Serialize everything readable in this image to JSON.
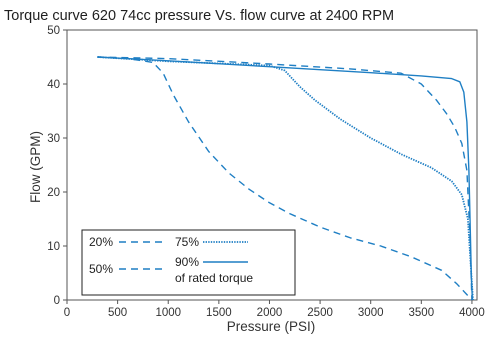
{
  "colors": {
    "series": "#1f7fc4",
    "axis": "#555555",
    "text": "#1f1f1f",
    "legend_border": "#222222"
  },
  "chart_data": {
    "type": "line",
    "title": "Torque curve 620 74cc pressure Vs. flow curve at 2400 RPM",
    "xlabel": "Pressure (PSI)",
    "ylabel": "Flow (GPM)",
    "xlim": [
      0,
      4050
    ],
    "ylim": [
      0,
      50
    ],
    "xticks": [
      0,
      500,
      1000,
      1500,
      2000,
      2500,
      3000,
      3500,
      4000
    ],
    "yticks": [
      0,
      10,
      20,
      30,
      40,
      50
    ],
    "grid": false,
    "legend_position": "bottom-left",
    "legend_note": "of rated torque",
    "series": [
      {
        "name": "20%",
        "style": "dashed",
        "x": [
          300,
          600,
          850,
          950,
          1050,
          1200,
          1400,
          1600,
          1800,
          2000,
          2200,
          2500,
          2800,
          3100,
          3400,
          3700,
          3850,
          3950,
          4000
        ],
        "y": [
          45,
          44.7,
          44,
          42,
          38,
          33,
          27.5,
          23.5,
          20.5,
          18,
          16,
          13.5,
          11.5,
          10,
          8,
          5.5,
          3,
          1,
          0
        ]
      },
      {
        "name": "50%",
        "style": "dashed",
        "x": [
          300,
          1000,
          2000,
          2800,
          3300,
          3500,
          3650,
          3750,
          3830,
          3900,
          3950,
          3980,
          4000
        ],
        "y": [
          45,
          44.7,
          43.7,
          42.8,
          42,
          40,
          37,
          34.5,
          32,
          29,
          24,
          12,
          0
        ]
      },
      {
        "name": "75%",
        "style": "dotted",
        "x": [
          300,
          1000,
          2000,
          2150,
          2300,
          2450,
          2700,
          3000,
          3300,
          3600,
          3800,
          3900,
          3960,
          3990,
          4010
        ],
        "y": [
          45,
          44.2,
          43.4,
          42.5,
          39.5,
          37,
          33.5,
          30,
          27,
          24.5,
          22,
          19.5,
          15,
          6,
          0
        ]
      },
      {
        "name": "90%",
        "style": "solid",
        "x": [
          300,
          1000,
          2000,
          3000,
          3500,
          3800,
          3880,
          3920,
          3950,
          3970,
          3985,
          3995,
          4005
        ],
        "y": [
          45,
          44.3,
          43.2,
          42.1,
          41.5,
          41,
          40.4,
          38.5,
          33,
          24,
          12,
          4,
          0
        ]
      }
    ]
  }
}
